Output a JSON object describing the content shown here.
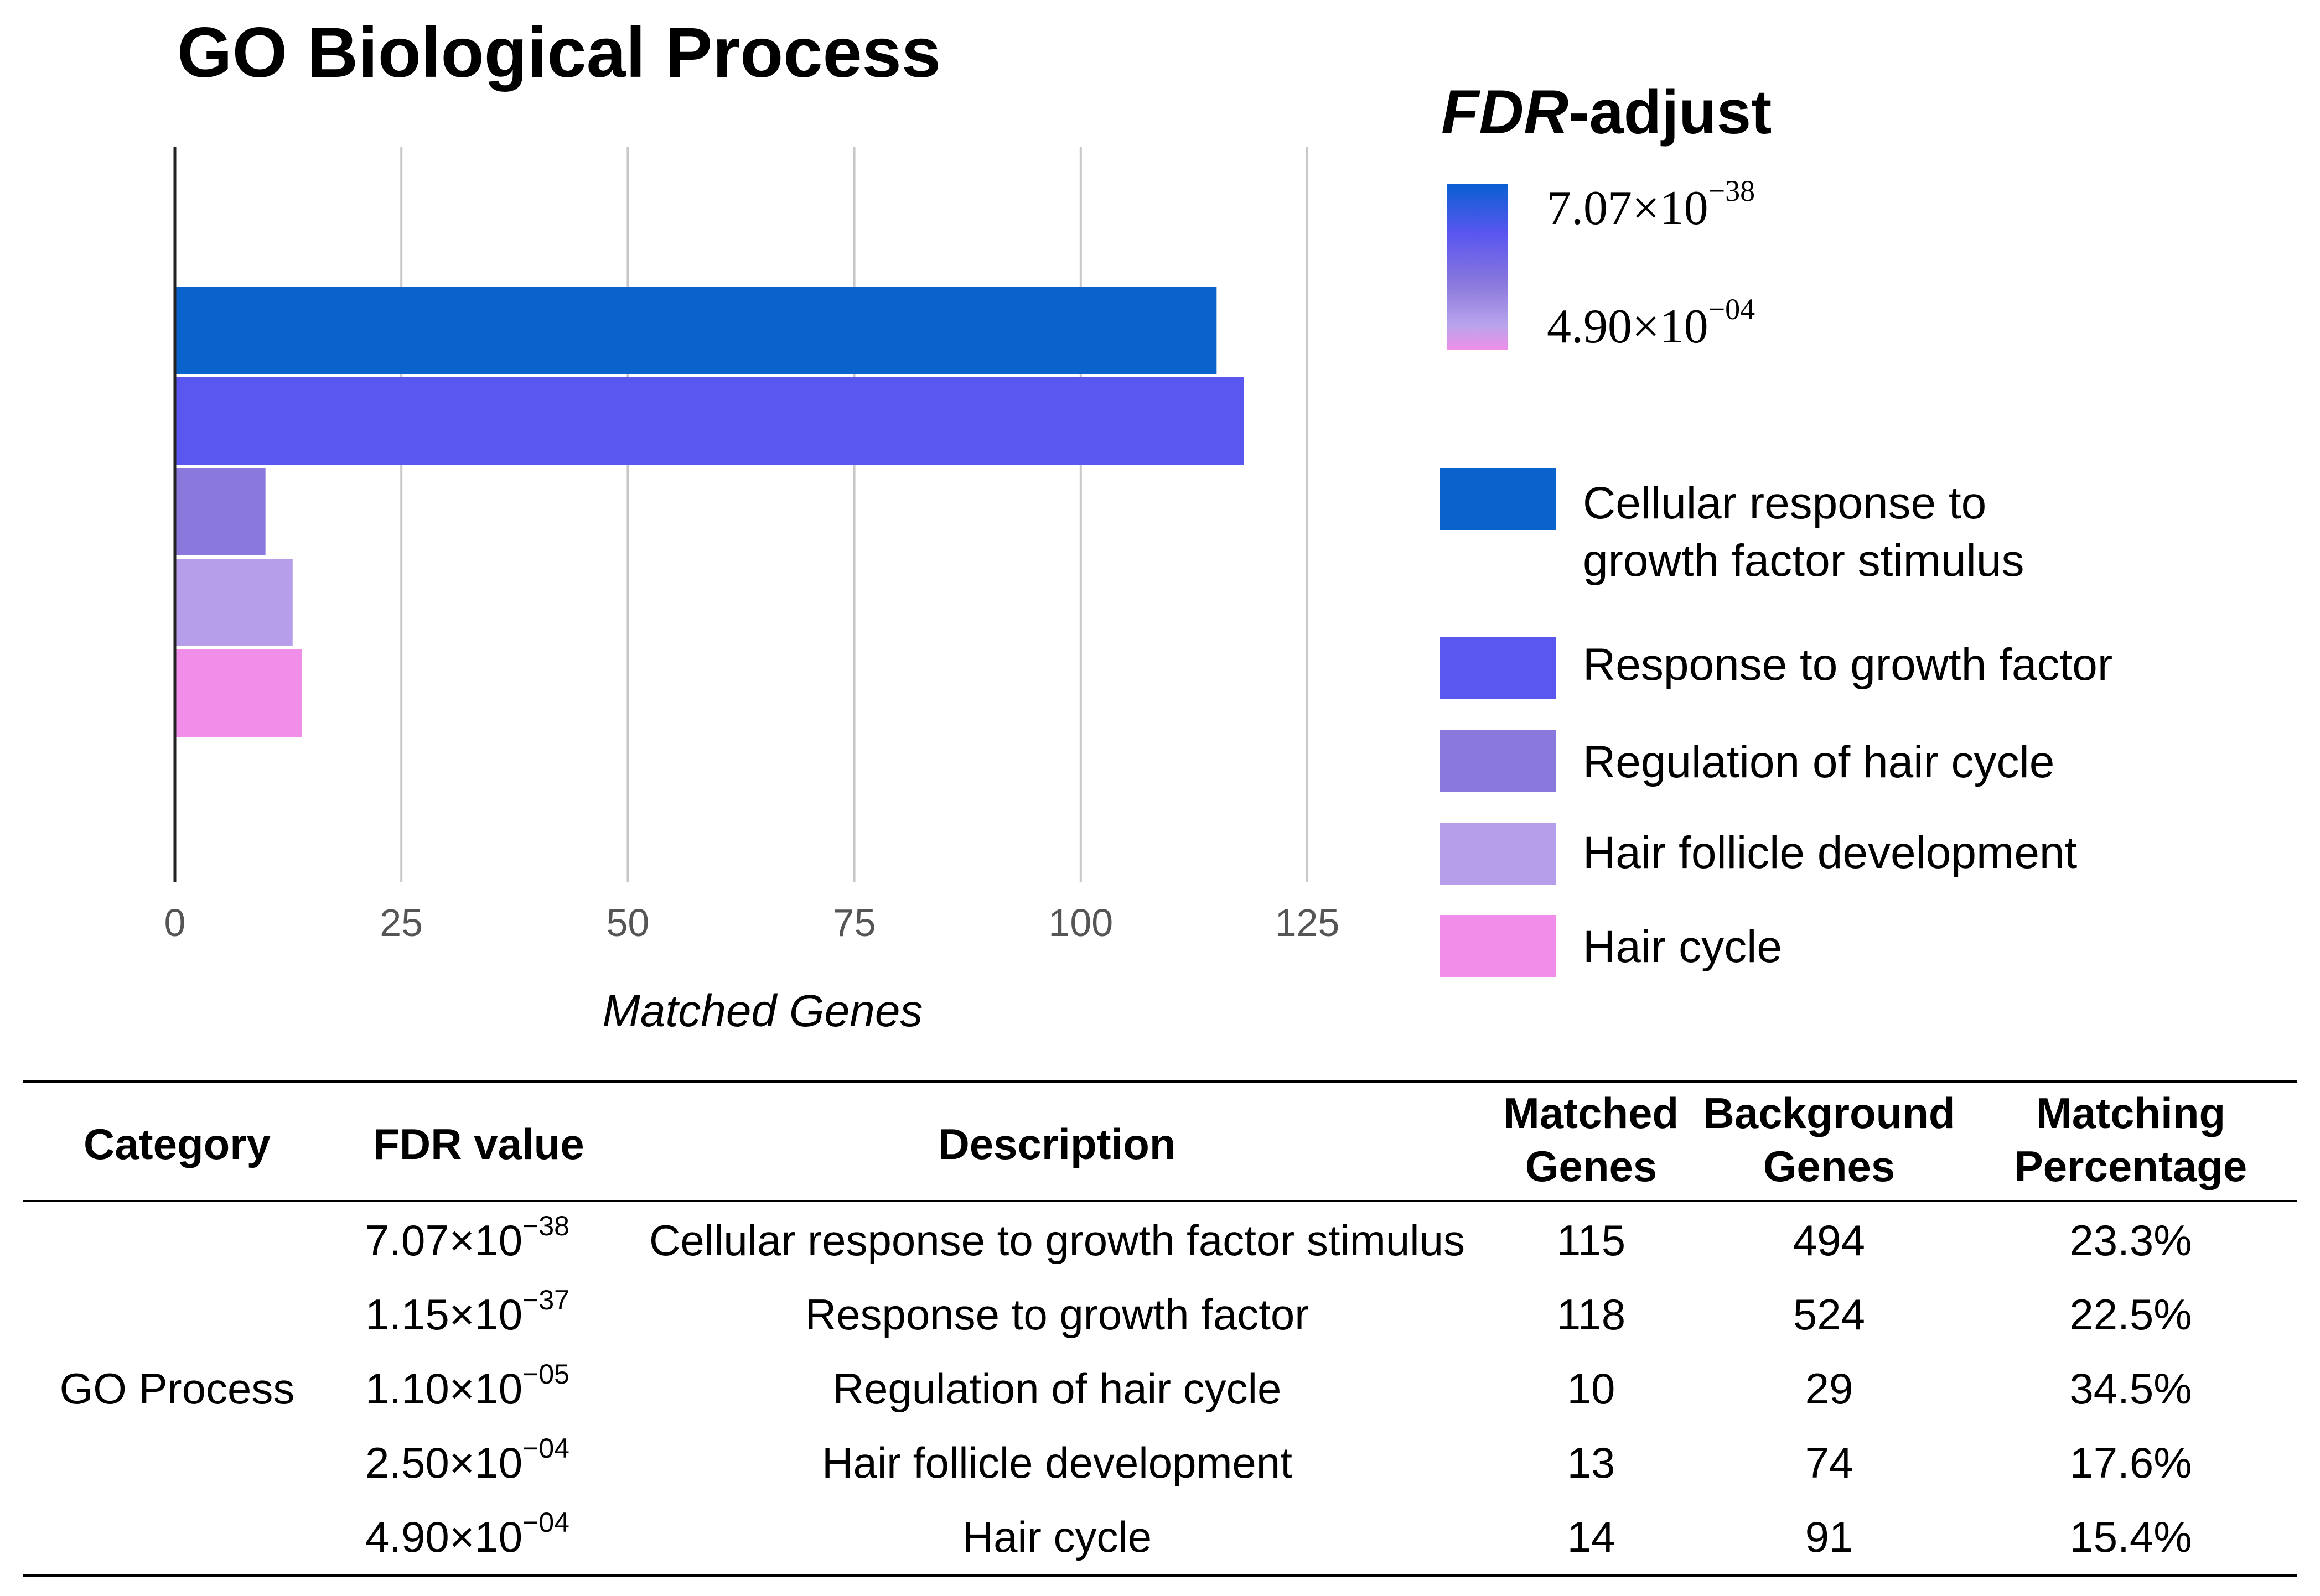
{
  "chart_data": {
    "type": "bar",
    "orientation": "horizontal",
    "title": "GO Biological Process",
    "xlabel": "Matched Genes",
    "ylabel": "",
    "xlim": [
      0,
      150
    ],
    "xticks": [
      0,
      25,
      50,
      75,
      100,
      125
    ],
    "grid": true,
    "categories": [
      "Cellular response to growth factor stimulus",
      "Response to growth factor",
      "Regulation of hair cycle",
      "Hair follicle development",
      "Hair cycle"
    ],
    "values": [
      115,
      118,
      10,
      13,
      14
    ],
    "colors": [
      "#0a62cc",
      "#5a56f0",
      "#8a78dc",
      "#b79eea",
      "#f08eea"
    ],
    "legend": {
      "title_italic": "FDR",
      "title_rest": "-adjust",
      "gradient_top": {
        "mantissa": "7.07",
        "times": "×",
        "base": "10",
        "exponent": "−38"
      },
      "gradient_bottom": {
        "mantissa": "4.90",
        "times": "×",
        "base": "10",
        "exponent": "−04"
      },
      "entries": [
        {
          "line1": "Cellular response to",
          "line2": "growth factor stimulus"
        },
        {
          "line1": "Response to growth factor",
          "line2": ""
        },
        {
          "line1": "Regulation of hair cycle",
          "line2": ""
        },
        {
          "line1": "Hair follicle development",
          "line2": ""
        },
        {
          "line1": "Hair cycle",
          "line2": ""
        }
      ]
    }
  },
  "table": {
    "headers": {
      "category": "Category",
      "fdr": "FDR value",
      "description": "Description",
      "matched_1": "Matched",
      "matched_2": "Genes",
      "background_1": "Background",
      "background_2": "Genes",
      "matching_1": "Matching",
      "matching_2": "Percentage"
    },
    "category_value": "GO Process",
    "rows": [
      {
        "mantissa": "7.07",
        "times": "×",
        "base": "10",
        "exponent": "−38",
        "description": "Cellular response to growth factor stimulus",
        "matched": "115",
        "background": "494",
        "percentage": "23.3%"
      },
      {
        "mantissa": "1.15",
        "times": "×",
        "base": "10",
        "exponent": "−37",
        "description": "Response to growth factor",
        "matched": "118",
        "background": "524",
        "percentage": "22.5%"
      },
      {
        "mantissa": "1.10",
        "times": "×",
        "base": "10",
        "exponent": "−05",
        "description": "Regulation of hair cycle",
        "matched": "10",
        "background": "29",
        "percentage": "34.5%"
      },
      {
        "mantissa": "2.50",
        "times": "×",
        "base": "10",
        "exponent": "−04",
        "description": "Hair follicle development",
        "matched": "13",
        "background": "74",
        "percentage": "17.6%"
      },
      {
        "mantissa": "4.90",
        "times": "×",
        "base": "10",
        "exponent": "−04",
        "description": "Hair cycle",
        "matched": "14",
        "background": "91",
        "percentage": "15.4%"
      }
    ]
  }
}
